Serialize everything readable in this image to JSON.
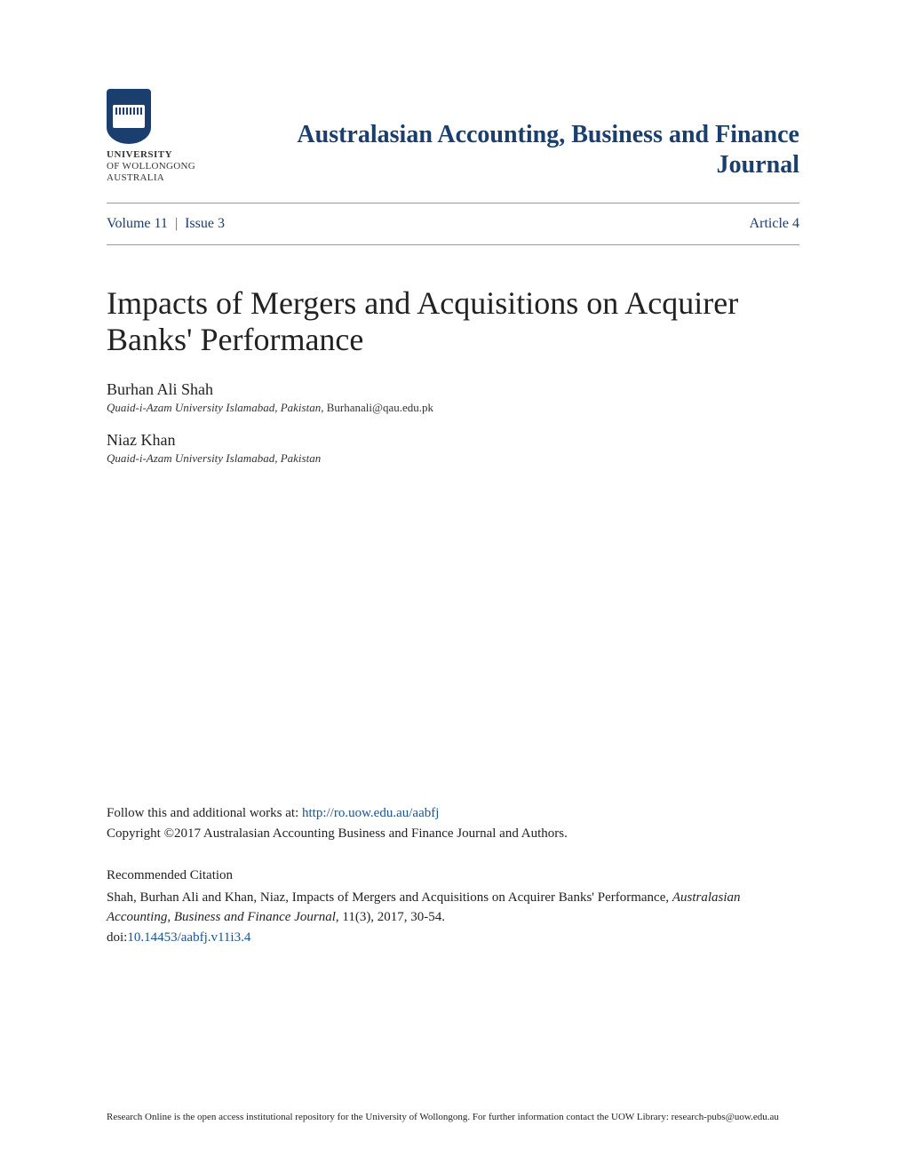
{
  "header": {
    "university": {
      "line1": "UNIVERSITY",
      "line2": "OF WOLLONGONG",
      "line3": "AUSTRALIA"
    },
    "journal_title": "Australasian Accounting, Business and Finance Journal"
  },
  "volume_bar": {
    "volume": "Volume 11",
    "issue": "Issue 3",
    "article": "Article 4"
  },
  "article": {
    "title": "Impacts of Mergers and Acquisitions on Acquirer Banks' Performance",
    "authors": [
      {
        "name": "Burhan Ali Shah",
        "affiliation": "Quaid-i-Azam University Islamabad, Pakistan",
        "email": ", Burhanali@qau.edu.pk"
      },
      {
        "name": "Niaz Khan",
        "affiliation": "Quaid-i-Azam University Islamabad, Pakistan",
        "email": ""
      }
    ]
  },
  "follow": {
    "prefix": "Follow this and additional works at: ",
    "url": "http://ro.uow.edu.au/aabfj",
    "copyright": "Copyright ©2017 Australasian Accounting Business and Finance Journal and Authors."
  },
  "citation": {
    "heading": "Recommended Citation",
    "text_before": "Shah, Burhan Ali and Khan, Niaz, Impacts of Mergers and Acquisitions on Acquirer Banks' Performance, ",
    "journal": "Australasian Accounting, Business and Finance Journal",
    "text_after": ", 11(3), 2017, 30-54.",
    "doi_label": "doi:",
    "doi": "10.14453/aabfj.v11i3.4"
  },
  "footer": {
    "text": "Research Online is the open access institutional repository for the University of Wollongong. For further information contact the UOW Library: research-pubs@uow.edu.au"
  },
  "colors": {
    "brand_blue": "#1a3e6e",
    "link_blue": "#1a5490",
    "text_black": "#222222",
    "divider_gray": "#999999",
    "background": "#ffffff"
  }
}
